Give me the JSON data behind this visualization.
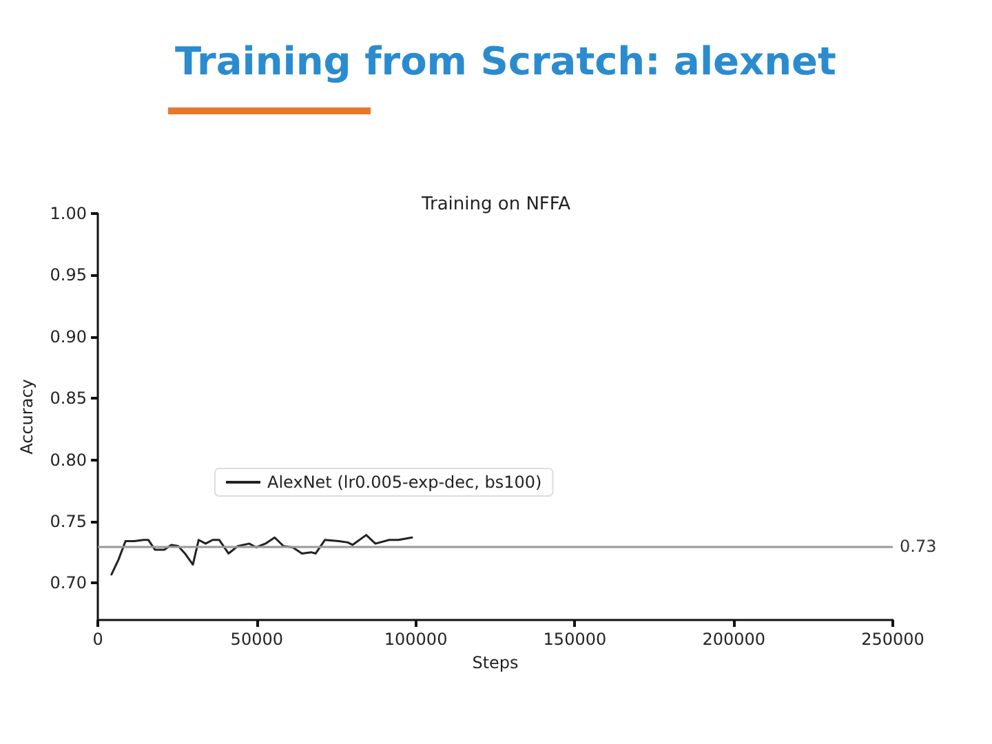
{
  "chart_data": {
    "type": "line",
    "title": "Training from Scratch: alexnet",
    "subtitle": "Training on NFFA",
    "xlabel": "Steps",
    "ylabel": "Accuracy",
    "x": [
      4300,
      6500,
      8700,
      11500,
      14400,
      15900,
      18000,
      20900,
      23100,
      25300,
      27400,
      29900,
      31700,
      33900,
      36100,
      38200,
      41100,
      44000,
      47600,
      49800,
      52700,
      55600,
      58400,
      61300,
      64200,
      67100,
      68500,
      71400,
      75800,
      78600,
      80100,
      84400,
      87300,
      91600,
      94500,
      98800
    ],
    "series": [
      {
        "name": "AlexNet (lr0.005-exp-dec, bs100)",
        "color": "#222222",
        "values": [
          0.707,
          0.719,
          0.734,
          0.734,
          0.735,
          0.735,
          0.727,
          0.727,
          0.731,
          0.73,
          0.724,
          0.715,
          0.735,
          0.732,
          0.735,
          0.735,
          0.724,
          0.73,
          0.732,
          0.729,
          0.732,
          0.737,
          0.73,
          0.729,
          0.724,
          0.725,
          0.724,
          0.735,
          0.734,
          0.733,
          0.731,
          0.739,
          0.732,
          0.735,
          0.735,
          0.737
        ]
      }
    ],
    "xlim": [
      0,
      250000
    ],
    "xticks": [
      0,
      50000,
      100000,
      150000,
      200000,
      250000
    ],
    "ylim": [
      0.67,
      1.0
    ],
    "yticks": [
      {
        "value": 0.7,
        "label": "0.70"
      },
      {
        "value": 0.75,
        "label": "0.75"
      },
      {
        "value": 0.8,
        "label": "0.80"
      },
      {
        "value": 0.85,
        "label": "0.85"
      },
      {
        "value": 0.9,
        "label": "0.90"
      },
      {
        "value": 0.95,
        "label": "0.95"
      },
      {
        "value": 1.0,
        "label": "1.00"
      }
    ],
    "ref_lines": [
      {
        "axis": "y",
        "value": 0.73,
        "label": "0.73",
        "color": "#999999"
      }
    ],
    "legend": "left",
    "grid": false,
    "marker": "none",
    "line_style": "solid"
  }
}
